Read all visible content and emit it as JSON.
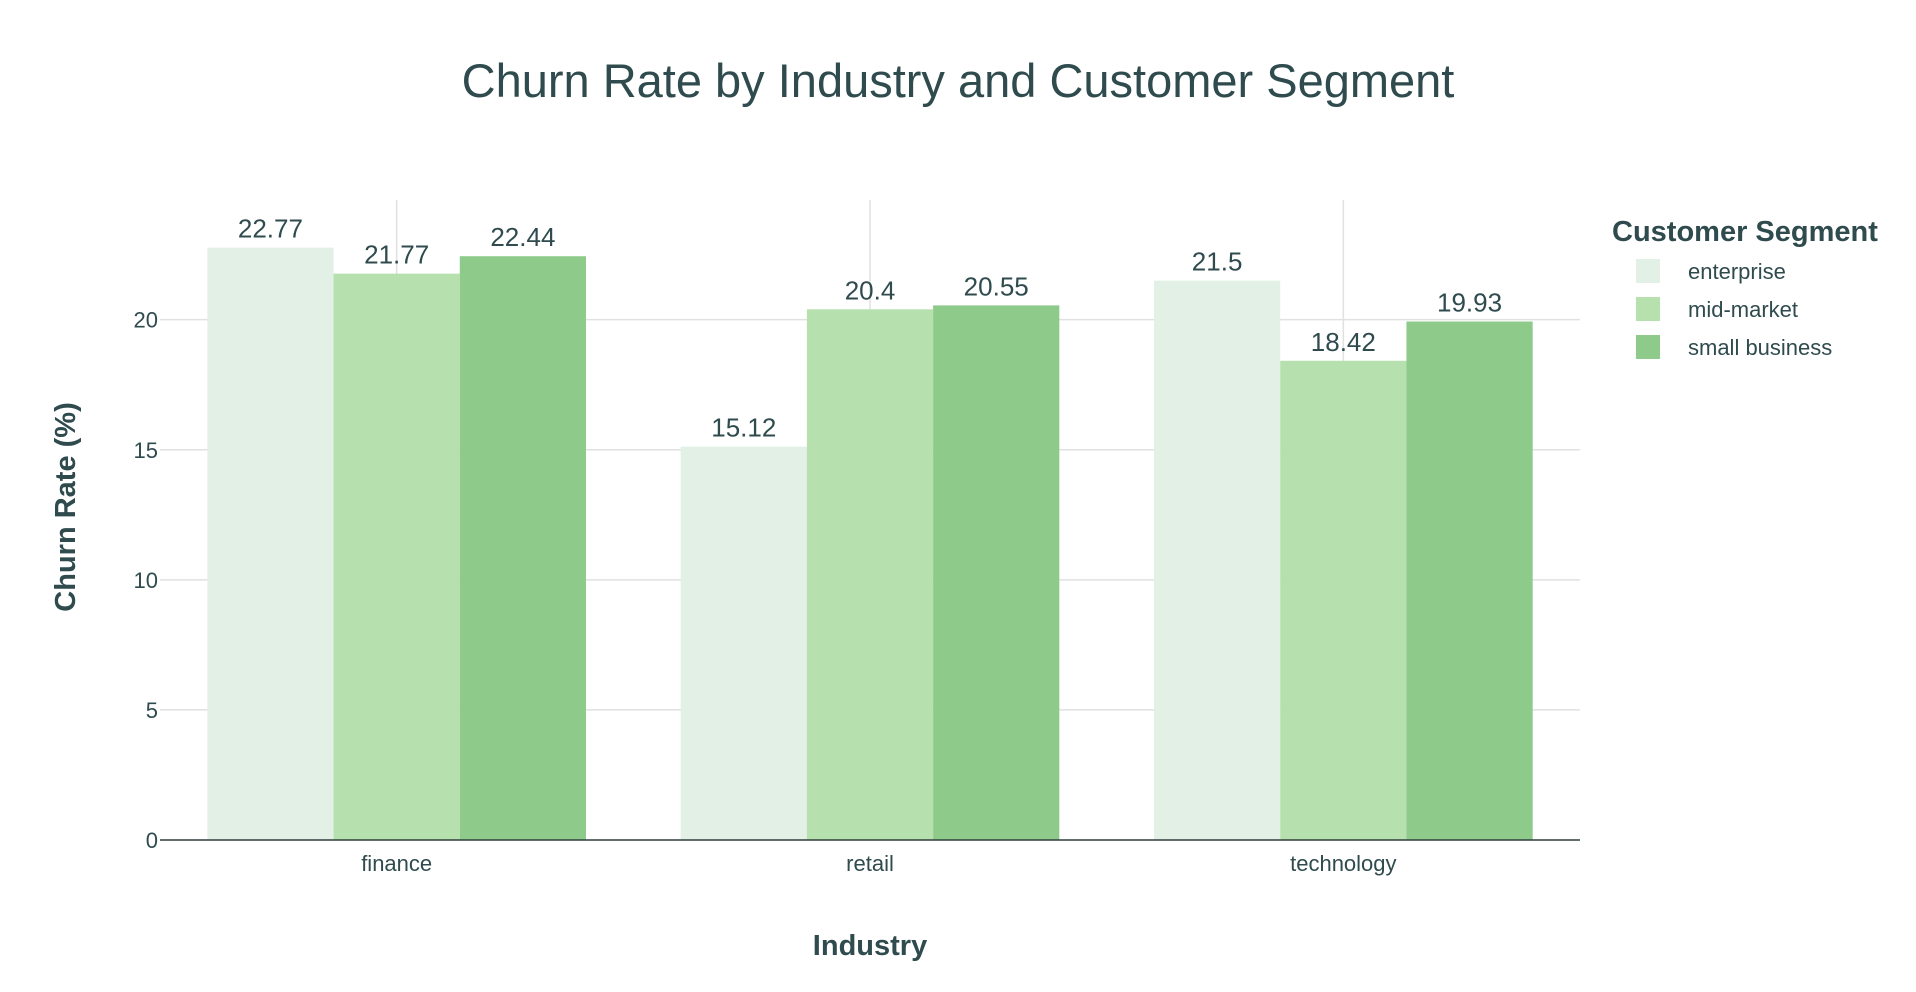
{
  "chart_data": {
    "type": "bar",
    "title": "Churn Rate by Industry and Customer Segment",
    "xlabel": "Industry",
    "ylabel": "Churn Rate (%)",
    "categories": [
      "finance",
      "retail",
      "technology"
    ],
    "yticks": [
      "0",
      "5",
      "10",
      "15",
      "20"
    ],
    "ylim": [
      0,
      24.6
    ],
    "grid": true,
    "legend": {
      "title": "Customer Segment",
      "position": "right"
    },
    "series": [
      {
        "name": "enterprise",
        "color": "#e2f0e6",
        "values": [
          22.77,
          15.12,
          21.5
        ],
        "labels": [
          "22.77",
          "15.12",
          "21.5"
        ]
      },
      {
        "name": "mid-market",
        "color": "#b6e1af",
        "values": [
          21.77,
          20.4,
          18.42
        ],
        "labels": [
          "21.77",
          "20.4",
          "18.42"
        ]
      },
      {
        "name": "small business",
        "color": "#8ecb8b",
        "values": [
          22.44,
          20.55,
          19.93
        ],
        "labels": [
          "22.44",
          "20.55",
          "19.93"
        ]
      }
    ]
  }
}
